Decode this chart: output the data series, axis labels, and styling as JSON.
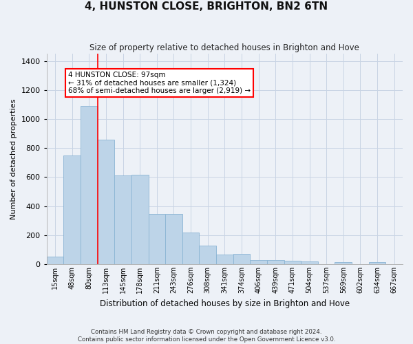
{
  "title": "4, HUNSTON CLOSE, BRIGHTON, BN2 6TN",
  "subtitle": "Size of property relative to detached houses in Brighton and Hove",
  "xlabel": "Distribution of detached houses by size in Brighton and Hove",
  "ylabel": "Number of detached properties",
  "footnote1": "Contains HM Land Registry data © Crown copyright and database right 2024.",
  "footnote2": "Contains public sector information licensed under the Open Government Licence v3.0.",
  "categories": [
    "15sqm",
    "48sqm",
    "80sqm",
    "113sqm",
    "145sqm",
    "178sqm",
    "211sqm",
    "243sqm",
    "276sqm",
    "308sqm",
    "341sqm",
    "374sqm",
    "406sqm",
    "439sqm",
    "471sqm",
    "504sqm",
    "537sqm",
    "569sqm",
    "602sqm",
    "634sqm",
    "667sqm"
  ],
  "values": [
    50,
    750,
    1090,
    860,
    610,
    615,
    345,
    345,
    220,
    130,
    65,
    70,
    30,
    28,
    25,
    20,
    0,
    12,
    0,
    12,
    0
  ],
  "bar_color": "#bdd4e8",
  "bar_edge_color": "#8ab4d4",
  "grid_color": "#c8d4e4",
  "background_color": "#edf1f7",
  "annotation_text": "4 HUNSTON CLOSE: 97sqm\n← 31% of detached houses are smaller (1,324)\n68% of semi-detached houses are larger (2,919) →",
  "annotation_box_color": "white",
  "annotation_box_edge_color": "red",
  "vline_x": 2.5,
  "vline_color": "red",
  "ylim": [
    0,
    1450
  ],
  "yticks": [
    0,
    200,
    400,
    600,
    800,
    1000,
    1200,
    1400
  ]
}
